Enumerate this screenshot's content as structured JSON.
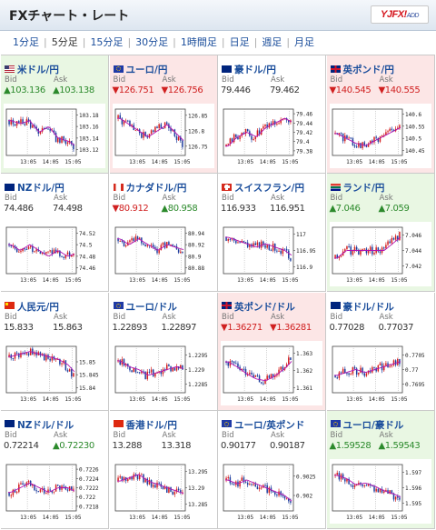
{
  "app": {
    "title": "FXチャート・レート",
    "logo_text": "YJFX!",
    "logo_sub": "ADD"
  },
  "tabs": [
    {
      "label": "1分足"
    },
    {
      "label": "5分足"
    },
    {
      "label": "15分足"
    },
    {
      "label": "30分足"
    },
    {
      "label": "1時間足"
    },
    {
      "label": "日足"
    },
    {
      "label": "週足"
    },
    {
      "label": "月足"
    }
  ],
  "active_tab": 1,
  "colors": {
    "up_bg": "#e9f7e3",
    "down_bg": "#fce6e6",
    "up_text": "#2c8a2c",
    "down_text": "#d02020",
    "link": "#1a4d9b"
  },
  "labels": {
    "bid": "Bid",
    "ask": "Ask"
  },
  "pairs": [
    {
      "name": "米ドル/円",
      "flag": "us",
      "dir": "up",
      "bid": "103.136",
      "ask": "103.138",
      "bid_dir": "up",
      "ask_dir": "up",
      "chart_data": {
        "type": "candlestick",
        "x_ticks": [
          "13:05",
          "14:05",
          "15:05"
        ],
        "y_ticks": [
          "103.18",
          "103.16",
          "103.14",
          "103.12"
        ],
        "ylim": [
          103.11,
          103.19
        ],
        "trend": [
          103.17,
          103.165,
          103.17,
          103.15,
          103.16,
          103.14,
          103.135,
          103.125
        ]
      }
    },
    {
      "name": "ユーロ/円",
      "flag": "eu",
      "dir": "down",
      "bid": "126.751",
      "ask": "126.756",
      "bid_dir": "down",
      "ask_dir": "down",
      "chart_data": {
        "type": "candlestick",
        "x_ticks": [
          "13:05",
          "14:05",
          "15:05"
        ],
        "y_ticks": [
          "126.85",
          "126.8",
          "126.75"
        ],
        "ylim": [
          126.72,
          126.87
        ],
        "trend": [
          126.84,
          126.82,
          126.8,
          126.78,
          126.8,
          126.82,
          126.79,
          126.76
        ]
      }
    },
    {
      "name": "豪ドル/円",
      "flag": "au",
      "dir": "flat",
      "bid": "79.446",
      "ask": "79.462",
      "bid_dir": "flat",
      "ask_dir": "flat",
      "chart_data": {
        "type": "candlestick",
        "x_ticks": [
          "13:05",
          "14:05",
          "15:05"
        ],
        "y_ticks": [
          "79.46",
          "79.44",
          "79.42",
          "79.4",
          "79.38"
        ],
        "ylim": [
          79.37,
          79.47
        ],
        "trend": [
          79.39,
          79.41,
          79.42,
          79.41,
          79.43,
          79.44,
          79.45,
          79.44
        ]
      }
    },
    {
      "name": "英ポンド/円",
      "flag": "gb",
      "dir": "down",
      "bid": "140.545",
      "ask": "140.555",
      "bid_dir": "down",
      "ask_dir": "down",
      "chart_data": {
        "type": "candlestick",
        "x_ticks": [
          "13:05",
          "14:05",
          "15:05"
        ],
        "y_ticks": [
          "140.6",
          "140.55",
          "140.5",
          "140.45"
        ],
        "ylim": [
          140.43,
          140.62
        ],
        "trend": [
          140.52,
          140.5,
          140.48,
          140.47,
          140.49,
          140.51,
          140.53,
          140.55
        ]
      }
    },
    {
      "name": "NZドル/円",
      "flag": "nz",
      "dir": "flat",
      "bid": "74.486",
      "ask": "74.498",
      "bid_dir": "flat",
      "ask_dir": "flat",
      "chart_data": {
        "type": "candlestick",
        "x_ticks": [
          "13:05",
          "14:05",
          "15:05"
        ],
        "y_ticks": [
          "74.52",
          "74.5",
          "74.48",
          "74.46"
        ],
        "ylim": [
          74.45,
          74.53
        ],
        "trend": [
          74.5,
          74.49,
          74.5,
          74.49,
          74.48,
          74.49,
          74.48,
          74.485
        ]
      }
    },
    {
      "name": "カナダドル/円",
      "flag": "ca",
      "dir": "flat",
      "bid": "80.912",
      "ask": "80.958",
      "bid_dir": "down",
      "ask_dir": "up",
      "chart_data": {
        "type": "candlestick",
        "x_ticks": [
          "13:05",
          "14:05",
          "15:05"
        ],
        "y_ticks": [
          "80.94",
          "80.92",
          "80.9",
          "80.88"
        ],
        "ylim": [
          80.87,
          80.95
        ],
        "trend": [
          80.93,
          80.92,
          80.93,
          80.92,
          80.91,
          80.92,
          80.915,
          80.91
        ]
      }
    },
    {
      "name": "スイスフラン/円",
      "flag": "ch",
      "dir": "flat",
      "bid": "116.933",
      "ask": "116.951",
      "bid_dir": "flat",
      "ask_dir": "flat",
      "chart_data": {
        "type": "candlestick",
        "x_ticks": [
          "13:05",
          "14:05",
          "15:05"
        ],
        "y_ticks": [
          "117",
          "116.95",
          "116.9"
        ],
        "ylim": [
          116.88,
          117.02
        ],
        "trend": [
          116.99,
          116.98,
          116.97,
          116.96,
          116.97,
          116.96,
          116.95,
          116.93
        ]
      }
    },
    {
      "name": "ランド/円",
      "flag": "za",
      "dir": "up",
      "bid": "7.046",
      "ask": "7.059",
      "bid_dir": "up",
      "ask_dir": "up",
      "chart_data": {
        "type": "candlestick",
        "x_ticks": [
          "13:05",
          "14:05",
          "15:05"
        ],
        "y_ticks": [
          "7.046",
          "7.044",
          "7.042"
        ],
        "ylim": [
          7.041,
          7.047
        ],
        "trend": [
          7.043,
          7.044,
          7.044,
          7.044,
          7.044,
          7.044,
          7.045,
          7.046
        ]
      }
    },
    {
      "name": "人民元/円",
      "flag": "cn",
      "dir": "flat",
      "bid": "15.833",
      "ask": "15.863",
      "bid_dir": "flat",
      "ask_dir": "flat",
      "chart_data": {
        "type": "candlestick",
        "x_ticks": [
          "13:05",
          "14:05",
          "15:05"
        ],
        "y_ticks": [
          "15.85",
          "15.845",
          "15.84"
        ],
        "ylim": [
          15.838,
          15.856
        ],
        "trend": [
          15.852,
          15.853,
          15.854,
          15.853,
          15.852,
          15.851,
          15.849,
          15.845
        ]
      }
    },
    {
      "name": "ユーロ/ドル",
      "flag": "eu",
      "dir": "flat",
      "bid": "1.22893",
      "ask": "1.22897",
      "bid_dir": "flat",
      "ask_dir": "flat",
      "chart_data": {
        "type": "candlestick",
        "x_ticks": [
          "13:05",
          "14:05",
          "15:05"
        ],
        "y_ticks": [
          "1.2295",
          "1.229",
          "1.2285"
        ],
        "ylim": [
          1.2282,
          1.2298
        ],
        "trend": [
          1.2293,
          1.2291,
          1.229,
          1.2288,
          1.2289,
          1.229,
          1.2291,
          1.229
        ]
      }
    },
    {
      "name": "英ポンド/ドル",
      "flag": "gb",
      "dir": "down",
      "bid": "1.36271",
      "ask": "1.36281",
      "bid_dir": "down",
      "ask_dir": "down",
      "chart_data": {
        "type": "candlestick",
        "x_ticks": [
          "13:05",
          "14:05",
          "15:05"
        ],
        "y_ticks": [
          "1.363",
          "1.362",
          "1.361"
        ],
        "ylim": [
          1.3607,
          1.3634
        ],
        "trend": [
          1.3625,
          1.3622,
          1.3618,
          1.3615,
          1.3614,
          1.3617,
          1.3621,
          1.3627
        ]
      }
    },
    {
      "name": "豪ドル/ドル",
      "flag": "au",
      "dir": "flat",
      "bid": "0.77028",
      "ask": "0.77037",
      "bid_dir": "flat",
      "ask_dir": "flat",
      "chart_data": {
        "type": "candlestick",
        "x_ticks": [
          "13:05",
          "14:05",
          "15:05"
        ],
        "y_ticks": [
          "0.7705",
          "0.77",
          "0.7695"
        ],
        "ylim": [
          0.7692,
          0.7708
        ],
        "trend": [
          0.7698,
          0.7699,
          0.77,
          0.7699,
          0.77,
          0.7701,
          0.7702,
          0.7703
        ]
      }
    },
    {
      "name": "NZドル/ドル",
      "flag": "nz",
      "dir": "flat",
      "bid": "0.72214",
      "ask": "0.72230",
      "bid_dir": "flat",
      "ask_dir": "up",
      "chart_data": {
        "type": "candlestick",
        "x_ticks": [
          "13:05",
          "14:05",
          "15:05"
        ],
        "y_ticks": [
          "0.7226",
          "0.7224",
          "0.7222",
          "0.722",
          "0.7218"
        ],
        "ylim": [
          0.7217,
          0.7227
        ],
        "trend": [
          0.7221,
          0.7222,
          0.7223,
          0.7222,
          0.7221,
          0.7222,
          0.7222,
          0.7221
        ]
      }
    },
    {
      "name": "香港ドル/円",
      "flag": "hk",
      "dir": "flat",
      "bid": "13.288",
      "ask": "13.318",
      "bid_dir": "flat",
      "ask_dir": "flat",
      "chart_data": {
        "type": "candlestick",
        "x_ticks": [
          "13:05",
          "14:05",
          "15:05"
        ],
        "y_ticks": [
          "13.295",
          "13.29",
          "13.285"
        ],
        "ylim": [
          13.283,
          13.297
        ],
        "trend": [
          13.292,
          13.293,
          13.294,
          13.292,
          13.291,
          13.29,
          13.289,
          13.288
        ]
      }
    },
    {
      "name": "ユーロ/英ポンド",
      "flag": "eu",
      "dir": "flat",
      "bid": "0.90177",
      "ask": "0.90187",
      "bid_dir": "flat",
      "ask_dir": "flat",
      "chart_data": {
        "type": "candlestick",
        "x_ticks": [
          "13:05",
          "14:05",
          "15:05"
        ],
        "y_ticks": [
          "0.9025",
          "0.902"
        ],
        "ylim": [
          0.9016,
          0.9028
        ],
        "trend": [
          0.9024,
          0.9023,
          0.9024,
          0.9023,
          0.9022,
          0.9021,
          0.902,
          0.9018
        ]
      }
    },
    {
      "name": "ユーロ/豪ドル",
      "flag": "eu",
      "dir": "up",
      "bid": "1.59528",
      "ask": "1.59543",
      "bid_dir": "up",
      "ask_dir": "up",
      "chart_data": {
        "type": "candlestick",
        "x_ticks": [
          "13:05",
          "14:05",
          "15:05"
        ],
        "y_ticks": [
          "1.597",
          "1.596",
          "1.595"
        ],
        "ylim": [
          1.5945,
          1.5975
        ],
        "trend": [
          1.5968,
          1.5966,
          1.5962,
          1.5963,
          1.5961,
          1.5958,
          1.5956,
          1.5953
        ]
      }
    }
  ]
}
